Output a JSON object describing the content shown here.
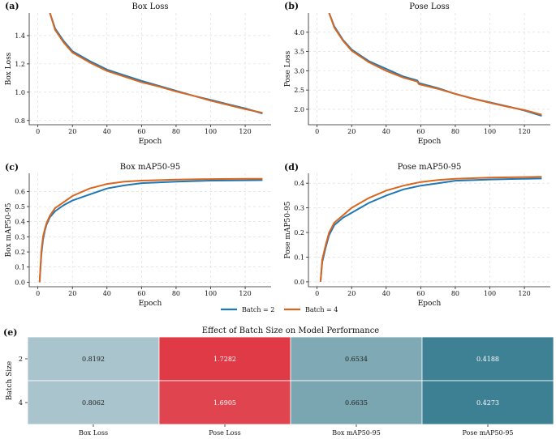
{
  "colors": {
    "batch2": "#1f77b4",
    "batch4": "#d9661f",
    "hm_low": "#a9c4cd",
    "hm_mid": "#7fa9b5",
    "hm_dark": "#3e8094",
    "hm_red": "#e03a47"
  },
  "legend": {
    "items": [
      "Batch = 2",
      "Batch = 4"
    ]
  },
  "chart_data": [
    {
      "id": "a",
      "panel_label": "(a)",
      "type": "line",
      "title": "Box Loss",
      "xlabel": "Epoch",
      "ylabel": "Box Loss",
      "xlim": [
        -5,
        135
      ],
      "ylim": [
        0.77,
        1.56
      ],
      "xticks": [
        0,
        20,
        40,
        60,
        80,
        100,
        120
      ],
      "yticks": [
        0.8,
        1.0,
        1.2,
        1.4
      ],
      "ytick_labels": [
        "0.8",
        "1.0",
        "1.2",
        "1.4"
      ],
      "series": [
        {
          "name": "Batch = 2",
          "x": [
            7,
            10,
            15,
            20,
            30,
            40,
            50,
            60,
            70,
            80,
            90,
            100,
            110,
            120,
            130
          ],
          "y": [
            1.56,
            1.45,
            1.36,
            1.29,
            1.22,
            1.16,
            1.12,
            1.08,
            1.045,
            1.01,
            0.975,
            0.945,
            0.915,
            0.885,
            0.85
          ]
        },
        {
          "name": "Batch = 4",
          "x": [
            7,
            10,
            15,
            20,
            30,
            40,
            50,
            60,
            70,
            80,
            90,
            100,
            110,
            120,
            130
          ],
          "y": [
            1.56,
            1.44,
            1.35,
            1.28,
            1.21,
            1.15,
            1.11,
            1.07,
            1.04,
            1.005,
            0.975,
            0.94,
            0.91,
            0.88,
            0.855
          ]
        }
      ]
    },
    {
      "id": "b",
      "panel_label": "(b)",
      "type": "line",
      "title": "Pose Loss",
      "xlabel": "Epoch",
      "ylabel": "Pose Loss",
      "xlim": [
        -5,
        135
      ],
      "ylim": [
        1.6,
        4.5
      ],
      "xticks": [
        0,
        20,
        40,
        60,
        80,
        100,
        120
      ],
      "yticks": [
        2.0,
        2.5,
        3.0,
        3.5,
        4.0
      ],
      "ytick_labels": [
        "2.0",
        "2.5",
        "3.0",
        "3.5",
        "4.0"
      ],
      "series": [
        {
          "name": "Batch = 2",
          "x": [
            7,
            10,
            15,
            20,
            30,
            40,
            50,
            58,
            59,
            70,
            80,
            90,
            100,
            110,
            120,
            130
          ],
          "y": [
            4.5,
            4.15,
            3.8,
            3.55,
            3.25,
            3.05,
            2.85,
            2.75,
            2.68,
            2.55,
            2.4,
            2.28,
            2.18,
            2.08,
            1.97,
            1.83
          ]
        },
        {
          "name": "Batch = 4",
          "x": [
            7,
            10,
            15,
            20,
            30,
            40,
            50,
            58,
            59,
            70,
            80,
            90,
            100,
            110,
            120,
            130
          ],
          "y": [
            4.5,
            4.12,
            3.78,
            3.52,
            3.22,
            3.0,
            2.82,
            2.72,
            2.65,
            2.53,
            2.4,
            2.28,
            2.17,
            2.07,
            1.98,
            1.86
          ]
        }
      ]
    },
    {
      "id": "c",
      "panel_label": "(c)",
      "type": "line",
      "title": "Box mAP50-95",
      "xlabel": "Epoch",
      "ylabel": "Box mAP50-95",
      "xlim": [
        -5,
        135
      ],
      "ylim": [
        -0.03,
        0.72
      ],
      "xticks": [
        0,
        20,
        40,
        60,
        80,
        100,
        120
      ],
      "yticks": [
        0.0,
        0.1,
        0.2,
        0.3,
        0.4,
        0.5,
        0.6
      ],
      "ytick_labels": [
        "0.0",
        "0.1",
        "0.2",
        "0.3",
        "0.4",
        "0.5",
        "0.6"
      ],
      "series": [
        {
          "name": "Batch = 2",
          "x": [
            1,
            2,
            3,
            4,
            5,
            7,
            10,
            15,
            20,
            30,
            40,
            50,
            60,
            80,
            100,
            120,
            130
          ],
          "y": [
            0.0,
            0.18,
            0.28,
            0.34,
            0.38,
            0.43,
            0.47,
            0.51,
            0.54,
            0.58,
            0.62,
            0.64,
            0.655,
            0.665,
            0.672,
            0.674,
            0.675
          ]
        },
        {
          "name": "Batch = 4",
          "x": [
            1,
            2,
            3,
            4,
            5,
            7,
            10,
            15,
            20,
            30,
            40,
            50,
            60,
            80,
            100,
            120,
            130
          ],
          "y": [
            0.0,
            0.2,
            0.3,
            0.35,
            0.39,
            0.44,
            0.49,
            0.53,
            0.57,
            0.62,
            0.65,
            0.665,
            0.672,
            0.678,
            0.682,
            0.684,
            0.684
          ]
        }
      ]
    },
    {
      "id": "d",
      "panel_label": "(d)",
      "type": "line",
      "title": "Pose mAP50-95",
      "xlabel": "Epoch",
      "ylabel": "Pose mAP50-95",
      "xlim": [
        -5,
        135
      ],
      "ylim": [
        -0.02,
        0.44
      ],
      "xticks": [
        0,
        20,
        40,
        60,
        80,
        100,
        120
      ],
      "yticks": [
        0.0,
        0.1,
        0.2,
        0.3,
        0.4
      ],
      "ytick_labels": [
        "0.0",
        "0.1",
        "0.2",
        "0.3",
        "0.4"
      ],
      "series": [
        {
          "name": "Batch = 2",
          "x": [
            2,
            3,
            5,
            7,
            10,
            15,
            20,
            30,
            40,
            50,
            60,
            70,
            80,
            100,
            120,
            130
          ],
          "y": [
            0.0,
            0.08,
            0.14,
            0.19,
            0.23,
            0.26,
            0.28,
            0.32,
            0.35,
            0.375,
            0.39,
            0.4,
            0.41,
            0.415,
            0.418,
            0.419
          ]
        },
        {
          "name": "Batch = 4",
          "x": [
            2,
            3,
            5,
            7,
            10,
            15,
            20,
            30,
            40,
            50,
            60,
            70,
            80,
            100,
            120,
            130
          ],
          "y": [
            0.0,
            0.09,
            0.15,
            0.2,
            0.24,
            0.27,
            0.3,
            0.34,
            0.37,
            0.39,
            0.405,
            0.413,
            0.418,
            0.423,
            0.425,
            0.426
          ]
        }
      ]
    },
    {
      "id": "e",
      "panel_label": "(e)",
      "type": "heatmap",
      "title": "Effect of Batch Size on Model Performance",
      "ylabel": "Batch Size",
      "row_labels": [
        "2",
        "4"
      ],
      "col_labels": [
        "Box Loss",
        "Pose Loss",
        "Box mAP50-95",
        "Pose mAP50-95"
      ],
      "values": [
        [
          "0.8192",
          "1.7282",
          "0.6534",
          "0.4188"
        ],
        [
          "0.8062",
          "1.6905",
          "0.6635",
          "0.4273"
        ]
      ],
      "cell_colors": [
        [
          "#a9c4cd",
          "#e03a47",
          "#7fa9b5",
          "#3e8094"
        ],
        [
          "#aac4cd",
          "#e0444f",
          "#7aa6b2",
          "#3d7f93"
        ]
      ]
    }
  ]
}
